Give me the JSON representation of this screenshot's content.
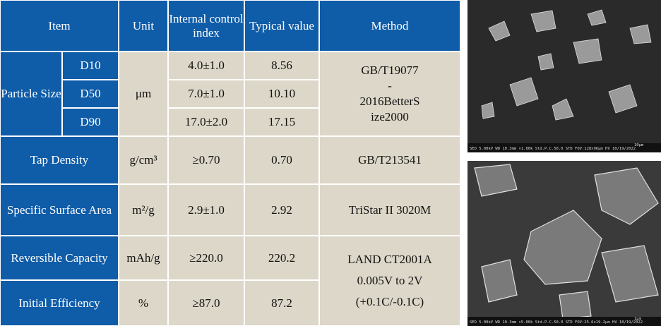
{
  "table": {
    "header": [
      "Item",
      "Unit",
      "Internal control index",
      "Typical value",
      "Method"
    ],
    "particle_size": {
      "item": "Particle Size",
      "unit": "μm",
      "sub": [
        {
          "label": "D10",
          "index": "4.0±1.0",
          "typical": "8.56"
        },
        {
          "label": "D50",
          "index": "7.0±1.0",
          "typical": "10.10"
        },
        {
          "label": "D90",
          "index": "17.0±2.0",
          "typical": "17.15"
        }
      ],
      "method": [
        "GB/T19077",
        "-",
        "2016BetterS",
        "ize2000"
      ]
    },
    "rows": [
      {
        "item": "Tap Density",
        "unit": "g/cm³",
        "index": "≥0.70",
        "typical": "0.70",
        "method": [
          "GB/T213541"
        ]
      },
      {
        "item": "Specific Surface Area",
        "unit": "m²/g",
        "index": "2.9±1.0",
        "typical": "2.92",
        "method": [
          "TriStar II 3020M"
        ]
      },
      {
        "item": "Reversible Capacity",
        "unit": "mAh/g",
        "index": "≥220.0",
        "typical": "220.2"
      },
      {
        "item": "Initial Efficiency",
        "unit": "%",
        "index": "≥87.0",
        "typical": "87.2"
      }
    ],
    "shared_method": [
      "LAND CT2001A",
      "0.005V to 2V",
      "(+0.1C/-0.1C)"
    ]
  },
  "images": [
    {
      "info": "SED 5.00kV WD 10.3mm ×1.00k Std.P.C.50.0 STD  FOV:128x96μm  HV  10/19/2022",
      "scale": "10μm"
    },
    {
      "info": "SED 5.00kV WD 10.3mm ×5.00k Std.P.C.50.0 STD  FOV:25.6x19.2μm  HV  10/19/2022",
      "scale": "1μm"
    }
  ]
}
